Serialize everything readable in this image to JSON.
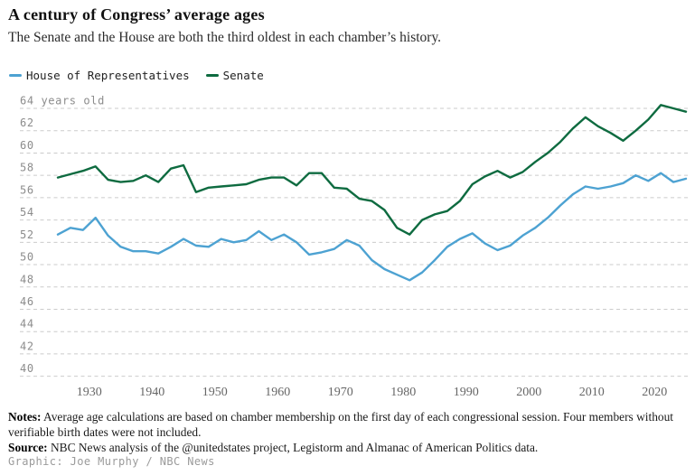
{
  "header": {
    "title": "A century of Congress’ average ages",
    "subtitle": "The Senate and the House are both the third oldest in each chamber’s history."
  },
  "footer": {
    "notes_label": "Notes:",
    "notes_text": " Average age calculations are based on chamber membership on the first day of each congressional session. Four members without verifiable birth dates were not included.",
    "source_label": "Source:",
    "source_text": " NBC News analysis of the @unitedstates project, Legistorm and Almanac of American Politics data.",
    "credit": "Graphic: Joe Murphy / NBC News"
  },
  "chart_data": {
    "type": "line",
    "title": "A century of Congress’ average ages",
    "subtitle": "The Senate and the House are both the third oldest in each chamber’s history.",
    "x_label": "",
    "y_label": "years old",
    "ytick_top_label": "64 years old",
    "ylim": [
      40,
      64
    ],
    "yticks": [
      64,
      62,
      60,
      58,
      56,
      54,
      52,
      50,
      48,
      46,
      44,
      42,
      40
    ],
    "xticks": [
      1930,
      1940,
      1950,
      1960,
      1970,
      1980,
      1990,
      2000,
      2010,
      2020
    ],
    "grid": "dashed-horizontal",
    "legend_position": "top-left",
    "x": [
      1925,
      1927,
      1929,
      1931,
      1933,
      1935,
      1937,
      1939,
      1941,
      1943,
      1945,
      1947,
      1949,
      1951,
      1953,
      1955,
      1957,
      1959,
      1961,
      1963,
      1965,
      1967,
      1969,
      1971,
      1973,
      1975,
      1977,
      1979,
      1981,
      1983,
      1985,
      1987,
      1989,
      1991,
      1993,
      1995,
      1997,
      1999,
      2001,
      2003,
      2005,
      2007,
      2009,
      2011,
      2013,
      2015,
      2017,
      2019,
      2021,
      2023,
      2025
    ],
    "series": [
      {
        "name": "House of Representatives",
        "color": "#4da2d2",
        "values": [
          52.7,
          53.3,
          53.1,
          54.2,
          52.6,
          51.6,
          51.2,
          51.2,
          51.0,
          51.6,
          52.3,
          51.7,
          51.6,
          52.3,
          52.0,
          52.2,
          53.0,
          52.2,
          52.7,
          52.0,
          50.9,
          51.1,
          51.4,
          52.2,
          51.7,
          50.4,
          49.6,
          49.1,
          48.6,
          49.3,
          50.4,
          51.6,
          52.3,
          52.8,
          51.9,
          51.3,
          51.7,
          52.6,
          53.3,
          54.2,
          55.3,
          56.3,
          57.0,
          56.8,
          57.0,
          57.3,
          58.0,
          57.5,
          58.2,
          57.4,
          57.7
        ]
      },
      {
        "name": "Senate",
        "color": "#0e6b40",
        "values": [
          57.8,
          58.1,
          58.4,
          58.8,
          57.6,
          57.4,
          57.5,
          58.0,
          57.4,
          58.6,
          58.9,
          56.5,
          56.9,
          57.0,
          57.1,
          57.2,
          57.6,
          57.8,
          57.8,
          57.1,
          58.2,
          58.2,
          56.9,
          56.8,
          55.9,
          55.7,
          54.9,
          53.3,
          52.7,
          54.0,
          54.5,
          54.8,
          55.7,
          57.2,
          57.9,
          58.4,
          57.8,
          58.3,
          59.2,
          60.0,
          61.0,
          62.2,
          63.2,
          62.4,
          61.8,
          61.1,
          62.0,
          63.0,
          64.3,
          64.0,
          63.7
        ]
      }
    ]
  }
}
